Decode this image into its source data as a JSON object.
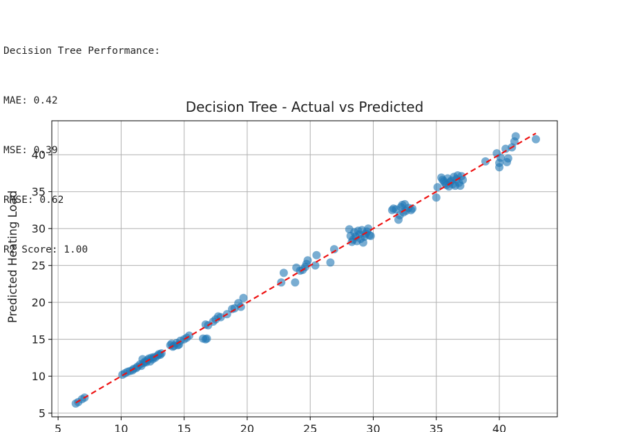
{
  "console_output": {
    "heading": "Decision Tree Performance:",
    "lines": [
      "MAE: 0.42",
      "MSE: 0.39",
      "RMSE: 0.62",
      "R2 Score: 1.00"
    ]
  },
  "chart_data": {
    "type": "scatter",
    "title": "Decision Tree - Actual vs Predicted",
    "xlabel": "",
    "ylabel": "Predicted Heating Load",
    "xlim": [
      4.5,
      44.6
    ],
    "ylim": [
      4.5,
      44.6
    ],
    "x_ticks": [
      5,
      10,
      15,
      20,
      25,
      30,
      35,
      40
    ],
    "y_ticks": [
      5,
      10,
      15,
      20,
      25,
      30,
      35,
      40
    ],
    "x_tick_labels": [
      "5",
      "10",
      "15",
      "20",
      "25",
      "30",
      "35",
      "40"
    ],
    "y_tick_labels": [
      "5",
      "10",
      "15",
      "20",
      "25",
      "30",
      "35",
      "40"
    ],
    "grid": true,
    "colors": {
      "points": "#1f77b4",
      "reference_line": "#ee1111",
      "grid": "#b0b0b0"
    },
    "reference_line": {
      "style": "dashed",
      "from": [
        6.4,
        6.4
      ],
      "to": [
        42.9,
        42.9
      ]
    },
    "points": [
      [
        6.4,
        6.3
      ],
      [
        6.6,
        6.5
      ],
      [
        6.9,
        6.9
      ],
      [
        7.1,
        7.1
      ],
      [
        10.1,
        10.2
      ],
      [
        10.3,
        10.4
      ],
      [
        10.5,
        10.6
      ],
      [
        10.7,
        10.7
      ],
      [
        10.9,
        10.8
      ],
      [
        11.0,
        11.0
      ],
      [
        11.2,
        11.1
      ],
      [
        11.3,
        11.3
      ],
      [
        11.5,
        11.6
      ],
      [
        11.6,
        11.4
      ],
      [
        11.7,
        12.3
      ],
      [
        11.8,
        11.8
      ],
      [
        11.9,
        12.0
      ],
      [
        12.0,
        11.9
      ],
      [
        12.1,
        12.2
      ],
      [
        12.2,
        12.4
      ],
      [
        12.3,
        12.0
      ],
      [
        12.4,
        12.5
      ],
      [
        12.5,
        12.3
      ],
      [
        12.6,
        12.6
      ],
      [
        12.7,
        12.5
      ],
      [
        12.9,
        12.8
      ],
      [
        13.0,
        13.0
      ],
      [
        13.1,
        12.9
      ],
      [
        13.2,
        13.1
      ],
      [
        13.9,
        14.2
      ],
      [
        14.0,
        14.4
      ],
      [
        14.1,
        14.0
      ],
      [
        14.2,
        14.1
      ],
      [
        14.4,
        14.5
      ],
      [
        14.5,
        14.2
      ],
      [
        14.6,
        14.3
      ],
      [
        14.7,
        14.8
      ],
      [
        15.0,
        15.0
      ],
      [
        15.2,
        15.2
      ],
      [
        15.4,
        15.5
      ],
      [
        16.5,
        15.1
      ],
      [
        16.7,
        15.0
      ],
      [
        16.8,
        15.1
      ],
      [
        16.7,
        17.0
      ],
      [
        16.9,
        16.9
      ],
      [
        17.3,
        17.4
      ],
      [
        17.5,
        17.7
      ],
      [
        17.7,
        18.1
      ],
      [
        17.9,
        18.0
      ],
      [
        18.4,
        18.4
      ],
      [
        18.8,
        19.1
      ],
      [
        19.0,
        19.2
      ],
      [
        19.3,
        19.9
      ],
      [
        19.5,
        19.4
      ],
      [
        19.7,
        20.6
      ],
      [
        22.7,
        22.7
      ],
      [
        22.9,
        24.0
      ],
      [
        23.8,
        22.7
      ],
      [
        23.9,
        24.7
      ],
      [
        24.2,
        24.3
      ],
      [
        24.4,
        24.4
      ],
      [
        24.6,
        24.8
      ],
      [
        24.7,
        25.2
      ],
      [
        24.8,
        25.7
      ],
      [
        25.4,
        25.0
      ],
      [
        25.5,
        26.4
      ],
      [
        26.6,
        25.4
      ],
      [
        26.9,
        27.2
      ],
      [
        28.1,
        29.9
      ],
      [
        28.2,
        29.0
      ],
      [
        28.3,
        28.2
      ],
      [
        28.4,
        28.5
      ],
      [
        28.5,
        29.5
      ],
      [
        28.6,
        28.9
      ],
      [
        28.7,
        28.3
      ],
      [
        28.8,
        29.7
      ],
      [
        28.9,
        29.2
      ],
      [
        29.0,
        28.6
      ],
      [
        29.1,
        29.8
      ],
      [
        29.2,
        28.1
      ],
      [
        29.3,
        28.9
      ],
      [
        29.4,
        29.3
      ],
      [
        29.5,
        29.6
      ],
      [
        29.6,
        30.0
      ],
      [
        29.7,
        29.1
      ],
      [
        29.8,
        29.0
      ],
      [
        31.5,
        32.5
      ],
      [
        31.6,
        32.7
      ],
      [
        31.8,
        32.6
      ],
      [
        32.0,
        31.2
      ],
      [
        32.1,
        31.8
      ],
      [
        32.2,
        32.9
      ],
      [
        32.3,
        33.2
      ],
      [
        32.4,
        32.2
      ],
      [
        32.5,
        33.3
      ],
      [
        32.6,
        32.4
      ],
      [
        32.8,
        32.8
      ],
      [
        33.0,
        32.5
      ],
      [
        33.1,
        32.7
      ],
      [
        35.0,
        34.2
      ],
      [
        35.1,
        35.6
      ],
      [
        35.4,
        36.9
      ],
      [
        35.5,
        36.6
      ],
      [
        35.6,
        36.4
      ],
      [
        35.7,
        36.1
      ],
      [
        35.8,
        35.9
      ],
      [
        35.9,
        36.8
      ],
      [
        36.0,
        35.7
      ],
      [
        36.1,
        36.3
      ],
      [
        36.2,
        36.5
      ],
      [
        36.3,
        36.0
      ],
      [
        36.4,
        37.0
      ],
      [
        36.5,
        35.8
      ],
      [
        36.6,
        36.7
      ],
      [
        36.7,
        37.2
      ],
      [
        36.8,
        36.2
      ],
      [
        36.9,
        35.8
      ],
      [
        37.0,
        37.1
      ],
      [
        37.1,
        36.6
      ],
      [
        38.9,
        39.1
      ],
      [
        39.8,
        40.2
      ],
      [
        40.0,
        38.9
      ],
      [
        40.1,
        39.6
      ],
      [
        40.0,
        38.3
      ],
      [
        40.5,
        40.8
      ],
      [
        40.6,
        39.0
      ],
      [
        40.7,
        39.5
      ],
      [
        41.0,
        41.0
      ],
      [
        41.2,
        41.8
      ],
      [
        41.3,
        42.5
      ],
      [
        42.9,
        42.1
      ]
    ]
  }
}
